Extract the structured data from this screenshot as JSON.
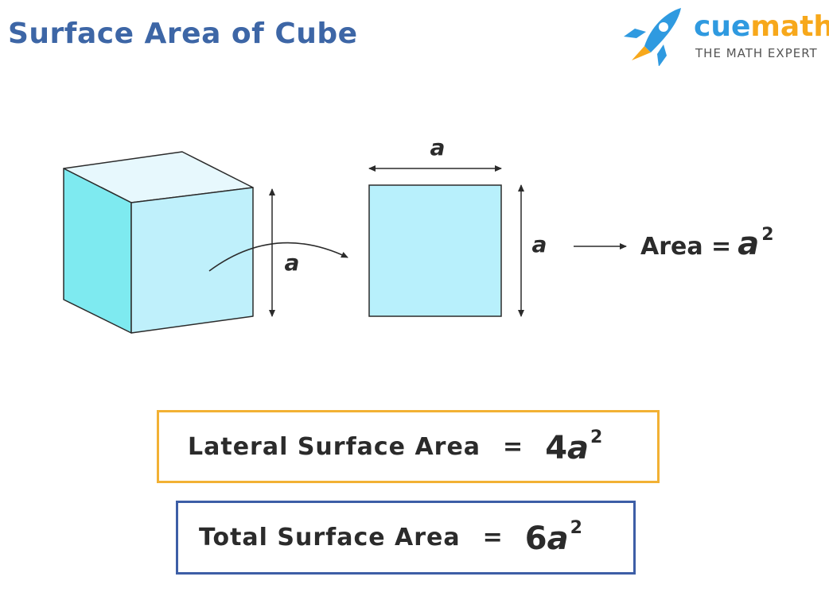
{
  "title": "Surface Area of Cube",
  "logo": {
    "brand_part1": "cue",
    "brand_part2": "math",
    "tagline": "THE MATH EXPERT"
  },
  "diagram": {
    "edge_label_cube": "a",
    "side_label_top": "a",
    "side_label_right": "a",
    "area_label": "Area =",
    "area_variable": "a",
    "area_exponent": "2"
  },
  "formulas": {
    "lateral": {
      "label": "Lateral Surface Area",
      "equals": "=",
      "coefficient": "4",
      "variable": "a",
      "exponent": "2"
    },
    "total": {
      "label": "Total Surface Area",
      "equals": "=",
      "coefficient": "6",
      "variable": "a",
      "exponent": "2"
    }
  },
  "colors": {
    "title": "#3d66a6",
    "cube_front": "#bff0fb",
    "cube_side": "#7eeaf0",
    "cube_top": "#e7f8fd",
    "square_fill": "#b8f0fc",
    "lateral_border": "#f2b134",
    "total_border": "#3d5ea6",
    "logo_blue": "#2f9ae0",
    "logo_orange": "#f7a81b"
  }
}
